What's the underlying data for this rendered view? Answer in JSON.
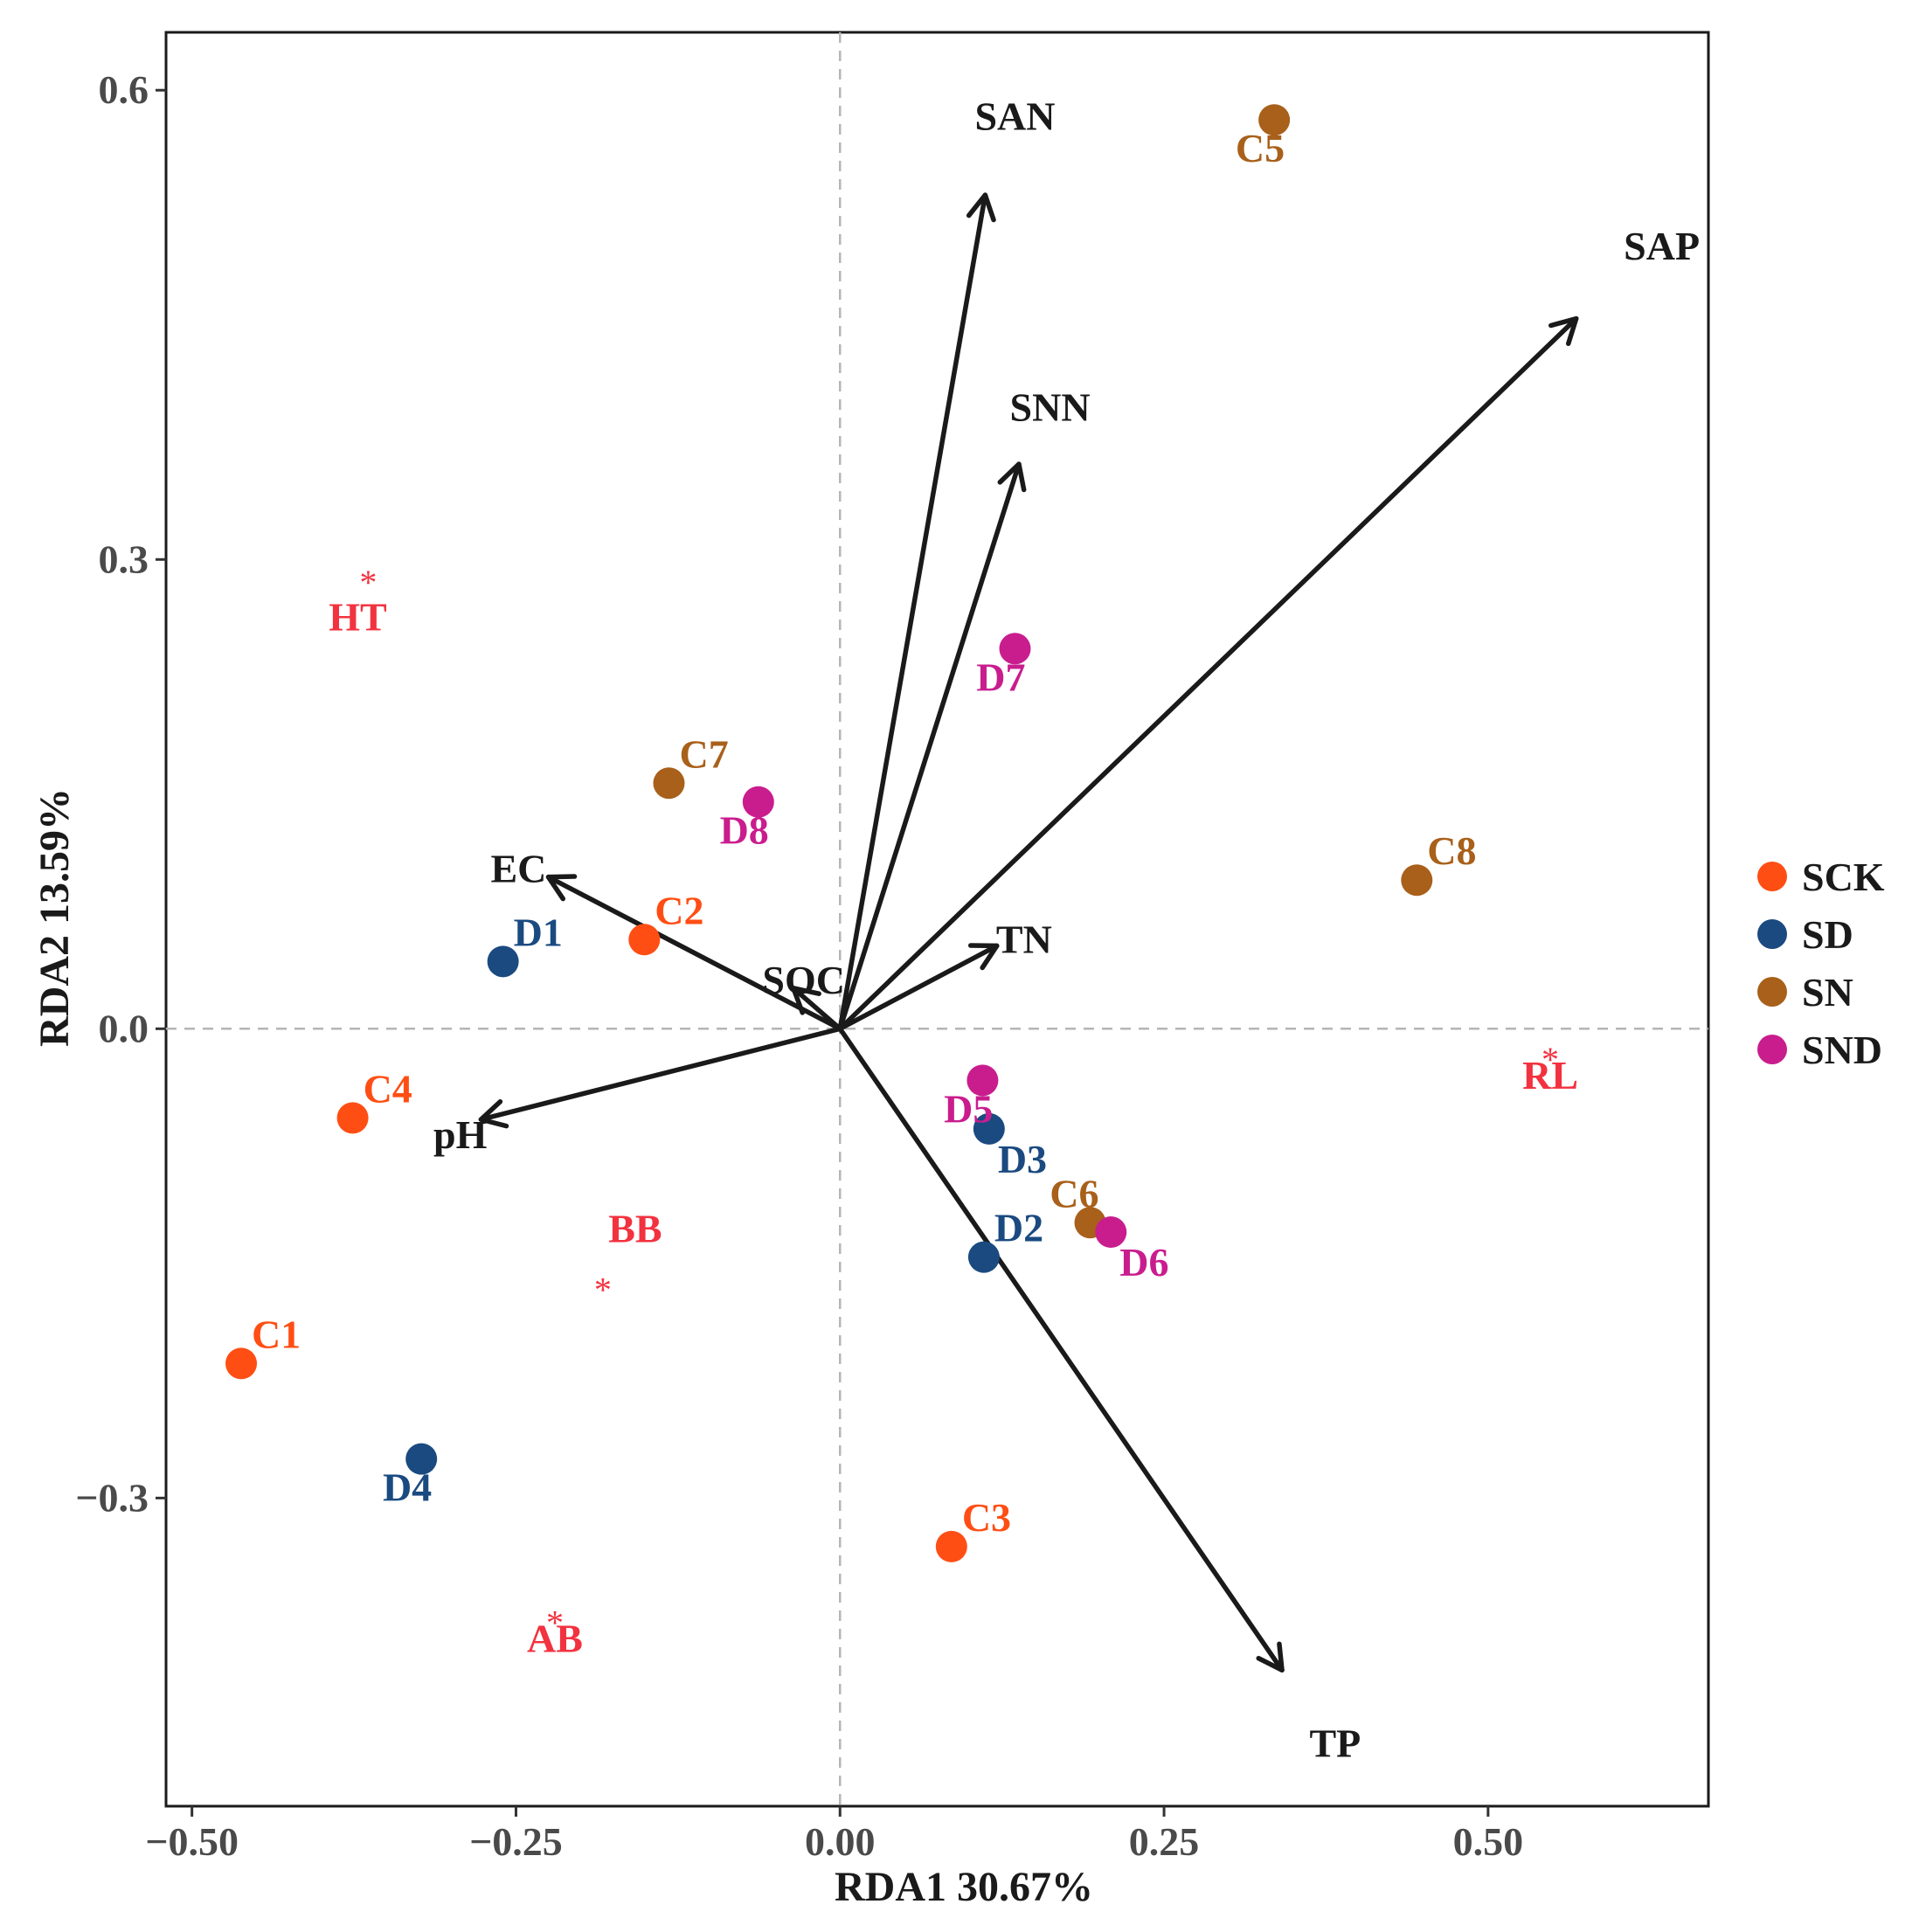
{
  "chart_data": {
    "type": "scatter",
    "subtype": "rda-biplot",
    "xlabel": "RDA1 30.67%",
    "ylabel": "RDA2 13.59%",
    "xlim": [
      -0.52,
      0.67
    ],
    "ylim": [
      -0.497,
      0.637
    ],
    "xticks": [
      {
        "value": -0.5,
        "label": "−0.50"
      },
      {
        "value": -0.25,
        "label": "−0.25"
      },
      {
        "value": 0.0,
        "label": "0.00"
      },
      {
        "value": 0.25,
        "label": "0.25"
      },
      {
        "value": 0.5,
        "label": "0.50"
      }
    ],
    "yticks": [
      {
        "value": 0.6,
        "label": "0.6"
      },
      {
        "value": 0.3,
        "label": "0.3"
      },
      {
        "value": 0.0,
        "label": "0.0"
      },
      {
        "value": -0.3,
        "label": "−0.3"
      }
    ],
    "reference_lines": {
      "x": 0,
      "y": 0,
      "style": "dashed"
    },
    "groups": [
      {
        "name": "SCK",
        "color": "#FF4E14"
      },
      {
        "name": "SD",
        "color": "#1A4A80"
      },
      {
        "name": "SN",
        "color": "#A8601A"
      },
      {
        "name": "SND",
        "color": "#C91D8E"
      }
    ],
    "samples": [
      {
        "label": "C1",
        "group": "SCK",
        "x": -0.462,
        "y": -0.214,
        "label_pos": "above-right"
      },
      {
        "label": "C2",
        "group": "SCK",
        "x": -0.151,
        "y": 0.057,
        "label_pos": "above-right"
      },
      {
        "label": "C3",
        "group": "SCK",
        "x": 0.086,
        "y": -0.331,
        "label_pos": "above-right"
      },
      {
        "label": "C4",
        "group": "SCK",
        "x": -0.376,
        "y": -0.057,
        "label_pos": "above-right"
      },
      {
        "label": "D1",
        "group": "SD",
        "x": -0.26,
        "y": 0.043,
        "label_pos": "above-right"
      },
      {
        "label": "D2",
        "group": "SD",
        "x": 0.111,
        "y": -0.146,
        "label_pos": "above-right"
      },
      {
        "label": "D3",
        "group": "SD",
        "x": 0.115,
        "y": -0.064,
        "label_pos": "below-right"
      },
      {
        "label": "D4",
        "group": "SD",
        "x": -0.323,
        "y": -0.275,
        "label_pos": "below-left"
      },
      {
        "label": "C5",
        "group": "SN",
        "x": 0.335,
        "y": 0.581,
        "label_pos": "below-left"
      },
      {
        "label": "C6",
        "group": "SN",
        "x": 0.193,
        "y": -0.124,
        "label_pos": "above-left"
      },
      {
        "label": "C7",
        "group": "SN",
        "x": -0.132,
        "y": 0.157,
        "label_pos": "above-right"
      },
      {
        "label": "C8",
        "group": "SN",
        "x": 0.445,
        "y": 0.095,
        "label_pos": "above-right"
      },
      {
        "label": "D5",
        "group": "SND",
        "x": 0.11,
        "y": -0.033,
        "label_pos": "below-left"
      },
      {
        "label": "D6",
        "group": "SND",
        "x": 0.209,
        "y": -0.13,
        "label_pos": "below-right"
      },
      {
        "label": "D7",
        "group": "SND",
        "x": 0.135,
        "y": 0.243,
        "label_pos": "below-left"
      },
      {
        "label": "D8",
        "group": "SND",
        "x": -0.063,
        "y": 0.145,
        "label_pos": "below-left"
      }
    ],
    "vectors": [
      {
        "label": "SAN",
        "x": 0.112,
        "y": 0.533,
        "lx": 0.135,
        "ly": 0.583
      },
      {
        "label": "SAP",
        "x": 0.568,
        "y": 0.454,
        "lx": 0.634,
        "ly": 0.5
      },
      {
        "label": "SNN",
        "x": 0.138,
        "y": 0.361,
        "lx": 0.162,
        "ly": 0.397
      },
      {
        "label": "TN",
        "x": 0.121,
        "y": 0.053,
        "lx": 0.142,
        "ly": 0.057
      },
      {
        "label": "SOC",
        "x": -0.036,
        "y": 0.026,
        "lx": -0.028,
        "ly": 0.031
      },
      {
        "label": "EC",
        "x": -0.225,
        "y": 0.097,
        "lx": -0.248,
        "ly": 0.102
      },
      {
        "label": "pH",
        "x": -0.277,
        "y": -0.058,
        "lx": -0.293,
        "ly": -0.068
      },
      {
        "label": "TP",
        "x": 0.341,
        "y": -0.41,
        "lx": 0.382,
        "ly": -0.457
      }
    ],
    "species": [
      {
        "label": "HT",
        "x": -0.372,
        "y": 0.263,
        "color": "#F2323F",
        "star_dx": 0.008,
        "star_dy": 0.027
      },
      {
        "label": "BB",
        "x": -0.158,
        "y": -0.128,
        "color": "#F2323F",
        "star_dx": -0.025,
        "star_dy": -0.034
      },
      {
        "label": "AB",
        "x": -0.22,
        "y": -0.39,
        "color": "#F2323F",
        "star_dx": 0.0,
        "star_dy": 0.015
      },
      {
        "label": "RL",
        "x": 0.548,
        "y": -0.03,
        "color": "#F2323F",
        "star_dx": 0.0,
        "star_dy": 0.015
      }
    ]
  }
}
